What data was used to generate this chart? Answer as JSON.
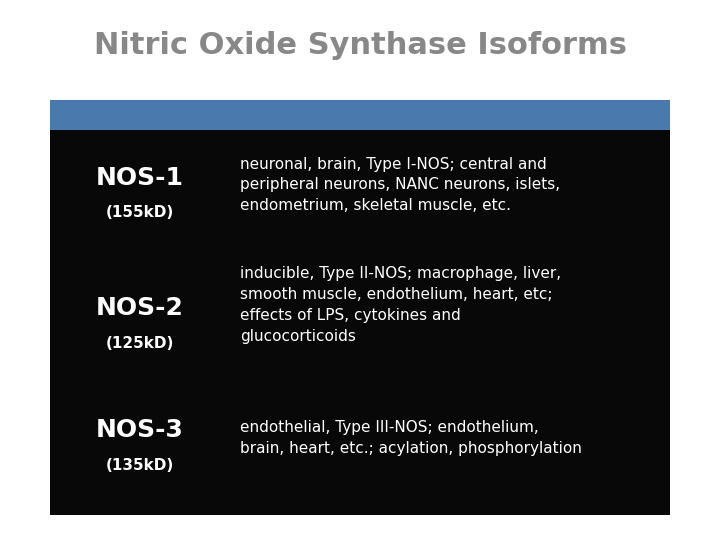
{
  "title": "Nitric Oxide Synthase Isoforms",
  "title_color": "#888888",
  "title_fontsize": 22,
  "bg_color": "#ffffff",
  "table_bg": "#080808",
  "header_bar_color": "#4a7aad",
  "rows": [
    {
      "name": "NOS-1",
      "weight": "(155kD)",
      "description": "neuronal, brain, Type I-NOS; central and\nperipheral neurons, NANC neurons, islets,\nendometrium, skeletal muscle, etc."
    },
    {
      "name": "NOS-2",
      "weight": "(125kD)",
      "description": "inducible, Type II-NOS; macrophage, liver,\nsmooth muscle, endothelium, heart, etc;\neffects of LPS, cytokines and\nglucocorticoids"
    },
    {
      "name": "NOS-3",
      "weight": "(135kD)",
      "description": "endothelial, Type III-NOS; endothelium,\nbrain, heart, etc.; acylation, phosphorylation"
    }
  ],
  "name_fontsize": 18,
  "weight_fontsize": 11,
  "desc_fontsize": 11,
  "text_color": "#ffffff"
}
